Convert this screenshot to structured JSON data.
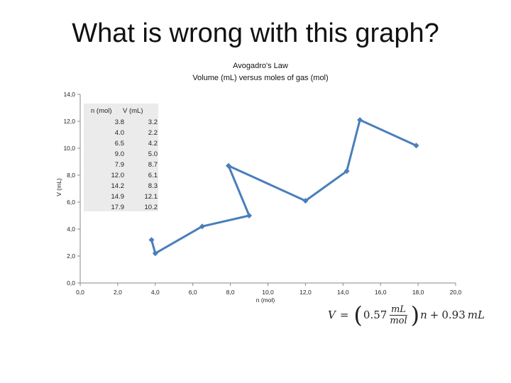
{
  "slide": {
    "title": "What is wrong with this graph?"
  },
  "chart_data": {
    "type": "line",
    "title": "Avogadro's Law",
    "subtitle": "Volume (mL) versus moles of gas (mol)",
    "xlabel": "n (mol)",
    "ylabel": "V (mL)",
    "xlim": [
      0,
      20
    ],
    "ylim": [
      0,
      14
    ],
    "x_ticks": [
      "0,0",
      "2,0",
      "4,0",
      "6,0",
      "8,0",
      "10,0",
      "12,0",
      "14,0",
      "16,0",
      "18,0",
      "20,0"
    ],
    "y_ticks": [
      "0,0",
      "2,0",
      "4,0",
      "6,0",
      "8,0",
      "10,0",
      "12,0",
      "14,0"
    ],
    "grid": false,
    "series": [
      {
        "color": "#4a7ebb",
        "x": [
          3.8,
          4.0,
          6.5,
          9.0,
          7.9,
          12.0,
          14.2,
          14.9,
          17.9
        ],
        "y": [
          3.2,
          2.2,
          4.2,
          5.0,
          8.7,
          6.1,
          8.3,
          12.1,
          10.2
        ]
      }
    ],
    "table": {
      "headers": [
        "n (mol)",
        "V (mL)"
      ],
      "rows": [
        [
          "3.8",
          "3.2"
        ],
        [
          "4.0",
          "2.2"
        ],
        [
          "6.5",
          "4.2"
        ],
        [
          "9.0",
          "5.0"
        ],
        [
          "7.9",
          "8.7"
        ],
        [
          "12.0",
          "6.1"
        ],
        [
          "14.2",
          "8.3"
        ],
        [
          "14.9",
          "12.1"
        ],
        [
          "17.9",
          "10.2"
        ]
      ]
    },
    "equation": {
      "lhs": "V",
      "eq": "=",
      "coef": "0.57",
      "unit_num": "mL",
      "unit_den": "mol",
      "var": "n",
      "plus": "+",
      "intercept": "0.93",
      "intercept_unit": "mL"
    }
  }
}
